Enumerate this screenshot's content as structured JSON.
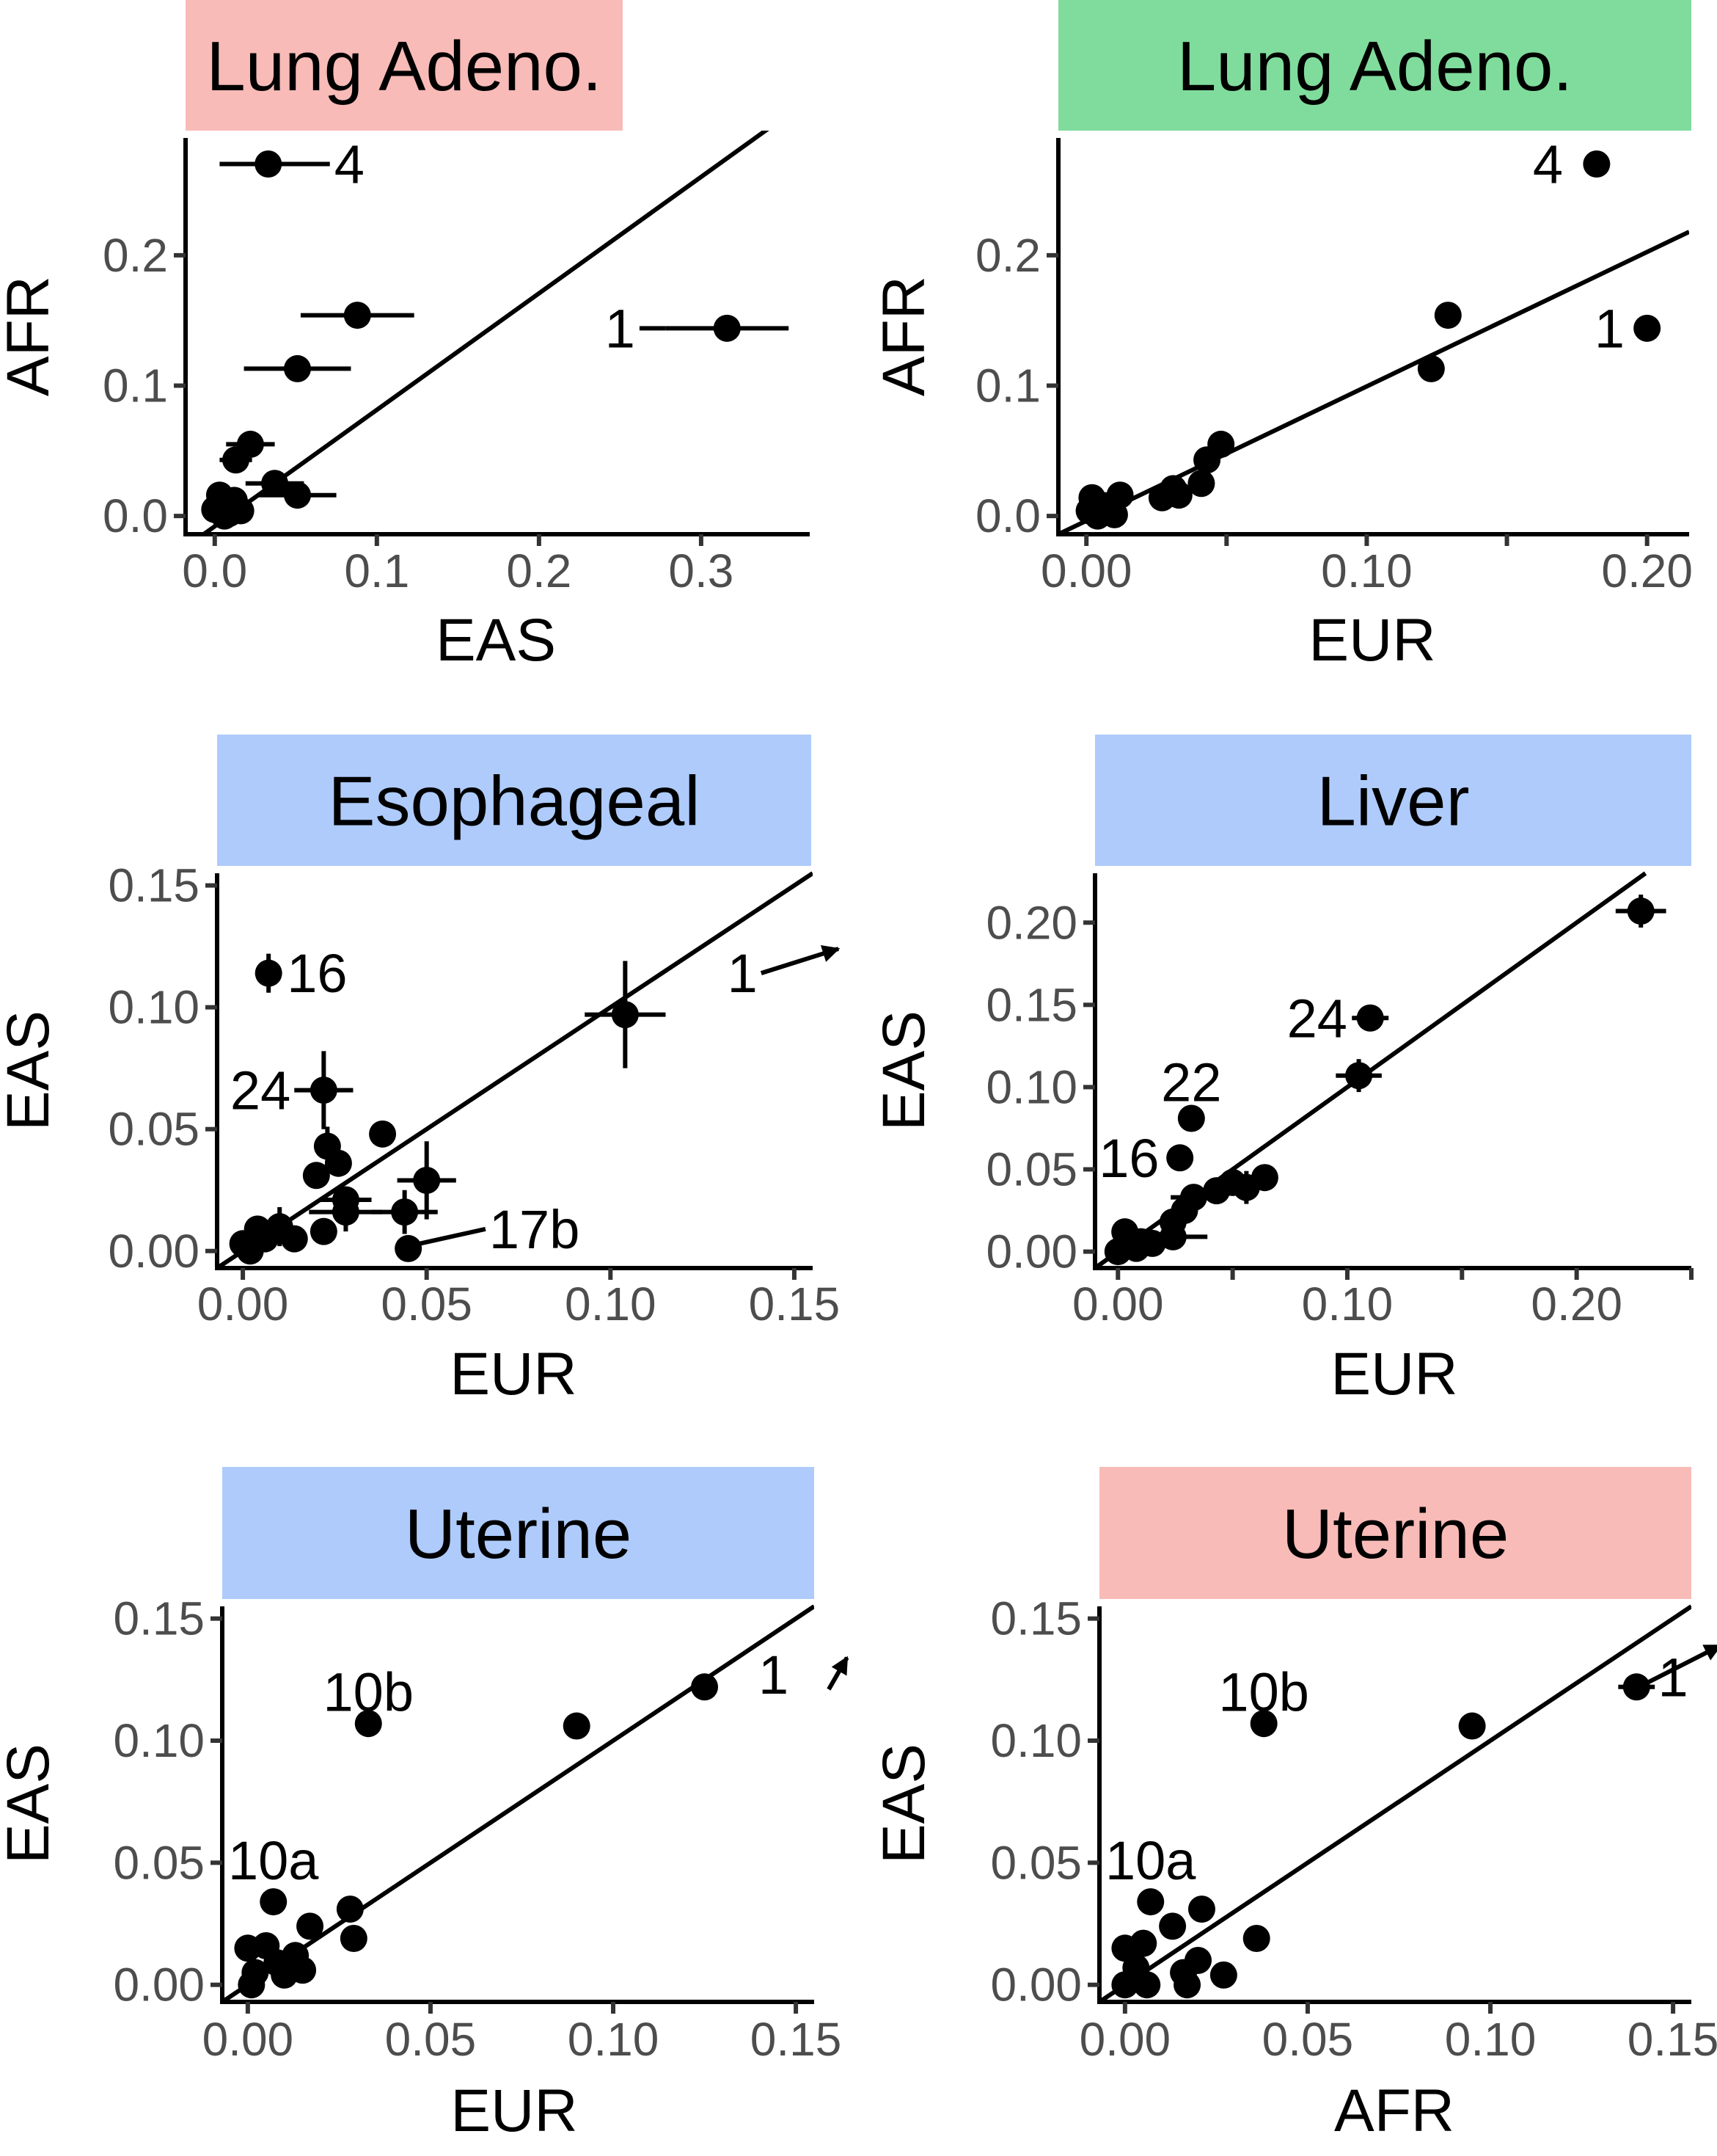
{
  "colors": {
    "red": "#f8bbb8",
    "green": "#80dc9c",
    "blue": "#aecbfb"
  },
  "chart_data": [
    {
      "type": "scatter",
      "title": "Lung Adeno.",
      "strip_color": "#f8bbb8",
      "xlabel": "EAS",
      "ylabel": "AFR",
      "xlim": [
        -0.018,
        0.367
      ],
      "ylim": [
        -0.014,
        0.29
      ],
      "xticks": [
        0.0,
        0.1,
        0.2,
        0.3
      ],
      "xtick_labels": [
        "0.0",
        "0.1",
        "0.2",
        "0.3"
      ],
      "yticks": [
        0.0,
        0.1,
        0.2
      ],
      "ytick_labels": [
        "0.0",
        "0.1",
        "0.2"
      ],
      "fit_line": [
        [
          -0.018,
          -0.024
        ],
        [
          0.367,
          0.32
        ]
      ],
      "points": [
        {
          "x": 0.033,
          "y": 0.27,
          "xerr": 0.03,
          "yerr": 0.006,
          "label": "4"
        },
        {
          "x": 0.316,
          "y": 0.144,
          "xerr": 0.038,
          "yerr": 0.003,
          "label": "1"
        },
        {
          "x": 0.088,
          "y": 0.154,
          "xerr": 0.035,
          "yerr": 0.004
        },
        {
          "x": 0.051,
          "y": 0.113,
          "xerr": 0.033,
          "yerr": 0.003
        },
        {
          "x": 0.022,
          "y": 0.055,
          "xerr": 0.015,
          "yerr": 0.01
        },
        {
          "x": 0.013,
          "y": 0.043,
          "xerr": 0.01,
          "yerr": 0.008
        },
        {
          "x": 0.037,
          "y": 0.025,
          "xerr": 0.018,
          "yerr": 0.007
        },
        {
          "x": 0.051,
          "y": 0.016,
          "xerr": 0.024,
          "yerr": 0.008
        },
        {
          "x": 0.005,
          "y": 0.01
        },
        {
          "x": 0.012,
          "y": 0.012
        },
        {
          "x": 0.0,
          "y": 0.005
        },
        {
          "x": 0.006,
          "y": 0.0
        },
        {
          "x": 0.016,
          "y": 0.004
        },
        {
          "x": 0.009,
          "y": 0.002
        },
        {
          "x": 0.003,
          "y": 0.016
        }
      ],
      "label_segments": [
        {
          "from": [
            0.057,
            0.27
          ],
          "to": [
            0.071,
            0.27
          ],
          "text": "4",
          "anchor": "start"
        },
        {
          "from": [
            0.278,
            0.144
          ],
          "to": [
            0.262,
            0.144
          ],
          "text": "1",
          "anchor": "end"
        }
      ]
    },
    {
      "type": "scatter",
      "title": "Lung Adeno.",
      "strip_color": "#80dc9c",
      "xlabel": "EUR",
      "ylabel": "AFR",
      "xlim": [
        -0.01,
        0.215
      ],
      "ylim": [
        -0.014,
        0.29
      ],
      "xticks": [
        0.0,
        0.05,
        0.1,
        0.15,
        0.2
      ],
      "xtick_labels": [
        "0.00",
        "",
        "0.10",
        "",
        "0.20"
      ],
      "yticks": [
        0.0,
        0.1,
        0.2
      ],
      "ytick_labels": [
        "0.0",
        "0.1",
        "0.2"
      ],
      "fit_line": [
        [
          -0.01,
          -0.014
        ],
        [
          0.215,
          0.218
        ]
      ],
      "points": [
        {
          "x": 0.182,
          "y": 0.27,
          "yerr": 0.01,
          "label": "4"
        },
        {
          "x": 0.2,
          "y": 0.144,
          "label": "1"
        },
        {
          "x": 0.129,
          "y": 0.154
        },
        {
          "x": 0.123,
          "y": 0.113
        },
        {
          "x": 0.048,
          "y": 0.055
        },
        {
          "x": 0.043,
          "y": 0.043
        },
        {
          "x": 0.041,
          "y": 0.025
        },
        {
          "x": 0.031,
          "y": 0.021
        },
        {
          "x": 0.033,
          "y": 0.016
        },
        {
          "x": 0.027,
          "y": 0.014
        },
        {
          "x": 0.012,
          "y": 0.016
        },
        {
          "x": 0.002,
          "y": 0.014
        },
        {
          "x": 0.006,
          "y": 0.008
        },
        {
          "x": 0.001,
          "y": 0.004
        },
        {
          "x": 0.01,
          "y": 0.001
        },
        {
          "x": 0.004,
          "y": 0.0
        }
      ],
      "label_segments": [
        {
          "text": "4",
          "at": [
            0.17,
            0.27
          ],
          "anchor": "end"
        },
        {
          "text": "1",
          "at": [
            0.192,
            0.144
          ],
          "anchor": "end"
        }
      ]
    },
    {
      "type": "scatter",
      "title": "Esophageal",
      "strip_color": "#aecbfb",
      "xlabel": "EUR",
      "ylabel": "EAS",
      "xlim": [
        -0.007,
        0.155
      ],
      "ylim": [
        -0.007,
        0.155
      ],
      "xticks": [
        0.0,
        0.05,
        0.1,
        0.15
      ],
      "xtick_labels": [
        "0.00",
        "0.05",
        "0.10",
        "0.15"
      ],
      "yticks": [
        0.0,
        0.05,
        0.1,
        0.15
      ],
      "ytick_labels": [
        "0.00",
        "0.05",
        "0.10",
        "0.15"
      ],
      "fit_line": [
        [
          -0.007,
          -0.007
        ],
        [
          0.155,
          0.155
        ]
      ],
      "points": [
        {
          "x": 0.007,
          "y": 0.114,
          "yerr": 0.008,
          "label": "16"
        },
        {
          "x": 0.104,
          "y": 0.097,
          "xerr": 0.011,
          "yerr": 0.022
        },
        {
          "x": 0.022,
          "y": 0.066,
          "xerr": 0.008,
          "yerr": 0.016,
          "label": "24"
        },
        {
          "x": 0.038,
          "y": 0.048
        },
        {
          "x": 0.023,
          "y": 0.043,
          "yerr": 0.008
        },
        {
          "x": 0.026,
          "y": 0.036
        },
        {
          "x": 0.02,
          "y": 0.031
        },
        {
          "x": 0.05,
          "y": 0.029,
          "xerr": 0.008,
          "yerr": 0.016
        },
        {
          "x": 0.028,
          "y": 0.021,
          "xerr": 0.007
        },
        {
          "x": 0.028,
          "y": 0.016,
          "xerr": 0.01,
          "yerr": 0.008
        },
        {
          "x": 0.044,
          "y": 0.016,
          "xerr": 0.009,
          "yerr": 0.009
        },
        {
          "x": 0.045,
          "y": 0.001,
          "label": "17b"
        },
        {
          "x": 0.022,
          "y": 0.008
        },
        {
          "x": 0.01,
          "y": 0.01,
          "yerr": 0.008
        },
        {
          "x": 0.006,
          "y": 0.005
        },
        {
          "x": 0.014,
          "y": 0.005
        },
        {
          "x": 0.0,
          "y": 0.003
        },
        {
          "x": 0.004,
          "y": 0.009
        },
        {
          "x": 0.002,
          "y": 0.0
        }
      ],
      "label_segments": [
        {
          "text": "16",
          "at": [
            0.012,
            0.114
          ],
          "anchor": "start"
        },
        {
          "text": "24",
          "at": [
            0.013,
            0.066
          ],
          "anchor": "end"
        },
        {
          "from": [
            0.048,
            0.003
          ],
          "to": [
            0.066,
            0.009
          ],
          "text": "17b",
          "at": [
            0.067,
            0.009
          ],
          "anchor": "start"
        },
        {
          "from": [
            0.141,
            0.114
          ],
          "to": [
            0.162,
            0.124
          ],
          "arrow": true,
          "text": "1",
          "at": [
            0.14,
            0.114
          ],
          "anchor": "end"
        }
      ]
    },
    {
      "type": "scatter",
      "title": "Liver",
      "strip_color": "#aecbfb",
      "xlabel": "EUR",
      "ylabel": "EAS",
      "xlim": [
        -0.01,
        0.25
      ],
      "ylim": [
        -0.01,
        0.23
      ],
      "xticks": [
        0.0,
        0.05,
        0.1,
        0.15,
        0.2,
        0.25
      ],
      "xtick_labels": [
        "0.00",
        "",
        "0.10",
        "",
        "0.20",
        ""
      ],
      "yticks": [
        0.0,
        0.05,
        0.1,
        0.15,
        0.2
      ],
      "ytick_labels": [
        "0.00",
        "0.05",
        "0.10",
        "0.15",
        "0.20"
      ],
      "fit_line": [
        [
          -0.01,
          -0.01
        ],
        [
          0.23,
          0.23
        ]
      ],
      "points": [
        {
          "x": 0.228,
          "y": 0.207,
          "xerr": 0.011,
          "yerr": 0.01
        },
        {
          "x": 0.11,
          "y": 0.142,
          "xerr": 0.008,
          "label": "24"
        },
        {
          "x": 0.105,
          "y": 0.107,
          "xerr": 0.01,
          "yerr": 0.01
        },
        {
          "x": 0.032,
          "y": 0.081,
          "label": "22"
        },
        {
          "x": 0.027,
          "y": 0.057,
          "label": "16"
        },
        {
          "x": 0.064,
          "y": 0.045
        },
        {
          "x": 0.05,
          "y": 0.042
        },
        {
          "x": 0.056,
          "y": 0.039,
          "yerr": 0.01
        },
        {
          "x": 0.043,
          "y": 0.037
        },
        {
          "x": 0.033,
          "y": 0.033,
          "xerr": 0.01
        },
        {
          "x": 0.029,
          "y": 0.025
        },
        {
          "x": 0.024,
          "y": 0.018
        },
        {
          "x": 0.024,
          "y": 0.009,
          "xerr": 0.015
        },
        {
          "x": 0.015,
          "y": 0.005
        },
        {
          "x": 0.003,
          "y": 0.012
        },
        {
          "x": 0.008,
          "y": 0.002
        },
        {
          "x": 0.0,
          "y": 0.0
        },
        {
          "x": 0.01,
          "y": 0.006
        }
      ],
      "label_segments": [
        {
          "text": "24",
          "at": [
            0.1,
            0.142
          ],
          "anchor": "end"
        },
        {
          "text": "22",
          "at": [
            0.032,
            0.103
          ],
          "anchor": "middle"
        },
        {
          "text": "16",
          "at": [
            0.018,
            0.057
          ],
          "anchor": "end"
        }
      ]
    },
    {
      "type": "scatter",
      "title": "Uterine",
      "strip_color": "#aecbfb",
      "xlabel": "EUR",
      "ylabel": "EAS",
      "xlim": [
        -0.007,
        0.155
      ],
      "ylim": [
        -0.007,
        0.155
      ],
      "xticks": [
        0.0,
        0.05,
        0.1,
        0.15
      ],
      "xtick_labels": [
        "0.00",
        "0.05",
        "0.10",
        "0.15"
      ],
      "yticks": [
        0.0,
        0.05,
        0.1,
        0.15
      ],
      "ytick_labels": [
        "0.00",
        "0.05",
        "0.10",
        "0.15"
      ],
      "fit_line": [
        [
          -0.007,
          -0.007
        ],
        [
          0.155,
          0.155
        ]
      ],
      "points": [
        {
          "x": 0.125,
          "y": 0.122
        },
        {
          "x": 0.09,
          "y": 0.106
        },
        {
          "x": 0.033,
          "y": 0.107,
          "label": "10b"
        },
        {
          "x": 0.007,
          "y": 0.034,
          "label": "10a"
        },
        {
          "x": 0.028,
          "y": 0.031
        },
        {
          "x": 0.029,
          "y": 0.019
        },
        {
          "x": 0.017,
          "y": 0.024
        },
        {
          "x": 0.013,
          "y": 0.012
        },
        {
          "x": 0.01,
          "y": 0.004
        },
        {
          "x": 0.005,
          "y": 0.016
        },
        {
          "x": 0.0,
          "y": 0.015
        },
        {
          "x": 0.002,
          "y": 0.005
        },
        {
          "x": 0.008,
          "y": 0.009
        },
        {
          "x": 0.015,
          "y": 0.006
        },
        {
          "x": 0.001,
          "y": 0.0
        }
      ],
      "label_segments": [
        {
          "text": "10b",
          "at": [
            0.033,
            0.12
          ],
          "anchor": "middle"
        },
        {
          "text": "10a",
          "at": [
            0.007,
            0.051
          ],
          "anchor": "middle"
        },
        {
          "from": [
            0.159,
            0.121
          ],
          "to": [
            0.164,
            0.134
          ],
          "arrow": true,
          "text": "1",
          "at": [
            0.148,
            0.127
          ],
          "anchor": "end"
        }
      ]
    },
    {
      "type": "scatter",
      "title": "Uterine",
      "strip_color": "#f8bbb8",
      "xlabel": "AFR",
      "ylabel": "EAS",
      "xlim": [
        -0.007,
        0.155
      ],
      "ylim": [
        -0.007,
        0.155
      ],
      "xticks": [
        0.0,
        0.05,
        0.1,
        0.15
      ],
      "xtick_labels": [
        "0.00",
        "0.05",
        "0.10",
        "0.15"
      ],
      "yticks": [
        0.0,
        0.05,
        0.1,
        0.15
      ],
      "ytick_labels": [
        "0.00",
        "0.05",
        "0.10",
        "0.15"
      ],
      "fit_line": [
        [
          -0.007,
          -0.007
        ],
        [
          0.155,
          0.155
        ]
      ],
      "points": [
        {
          "x": 0.14,
          "y": 0.122,
          "xerr": 0.005
        },
        {
          "x": 0.095,
          "y": 0.106
        },
        {
          "x": 0.038,
          "y": 0.107,
          "label": "10b"
        },
        {
          "x": 0.007,
          "y": 0.034,
          "label": "10a"
        },
        {
          "x": 0.021,
          "y": 0.031
        },
        {
          "x": 0.013,
          "y": 0.024
        },
        {
          "x": 0.036,
          "y": 0.019
        },
        {
          "x": 0.02,
          "y": 0.01
        },
        {
          "x": 0.005,
          "y": 0.017
        },
        {
          "x": 0.0,
          "y": 0.015
        },
        {
          "x": 0.003,
          "y": 0.007
        },
        {
          "x": 0.016,
          "y": 0.005
        },
        {
          "x": 0.027,
          "y": 0.004
        },
        {
          "x": 0.006,
          "y": 0.0
        },
        {
          "x": 0.017,
          "y": 0.0
        },
        {
          "x": 0.0,
          "y": 0.0
        }
      ],
      "label_segments": [
        {
          "text": "10b",
          "at": [
            0.038,
            0.12
          ],
          "anchor": "middle"
        },
        {
          "text": "10a",
          "at": [
            0.007,
            0.051
          ],
          "anchor": "middle"
        },
        {
          "from": [
            0.142,
            0.123
          ],
          "to": [
            0.163,
            0.139
          ],
          "arrow": true,
          "text": "1",
          "at": [
            0.15,
            0.126
          ],
          "anchor": "middle"
        }
      ]
    }
  ]
}
